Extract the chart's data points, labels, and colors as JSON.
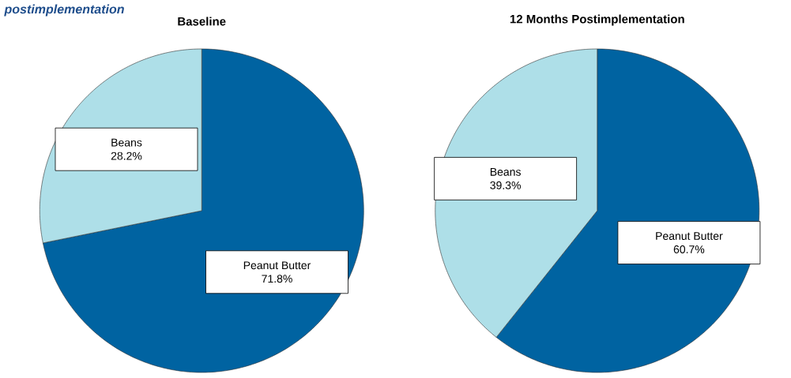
{
  "chart_data": [
    {
      "type": "pie",
      "title": "Baseline",
      "annotations": [
        "postimplementation"
      ],
      "categories": [
        "Peanut Butter",
        "Beans"
      ],
      "values": [
        71.8,
        28.2
      ],
      "value_labels": [
        "71.8%",
        "28.2%"
      ],
      "colors": [
        "#0063a1",
        "#aedfe8"
      ]
    },
    {
      "type": "pie",
      "title": "12 Months Postimplementation",
      "categories": [
        "Peanut Butter",
        "Beans"
      ],
      "values": [
        60.7,
        39.3
      ],
      "value_labels": [
        "60.7%",
        "39.3%"
      ],
      "colors": [
        "#0063a1",
        "#aedfe8"
      ]
    }
  ]
}
